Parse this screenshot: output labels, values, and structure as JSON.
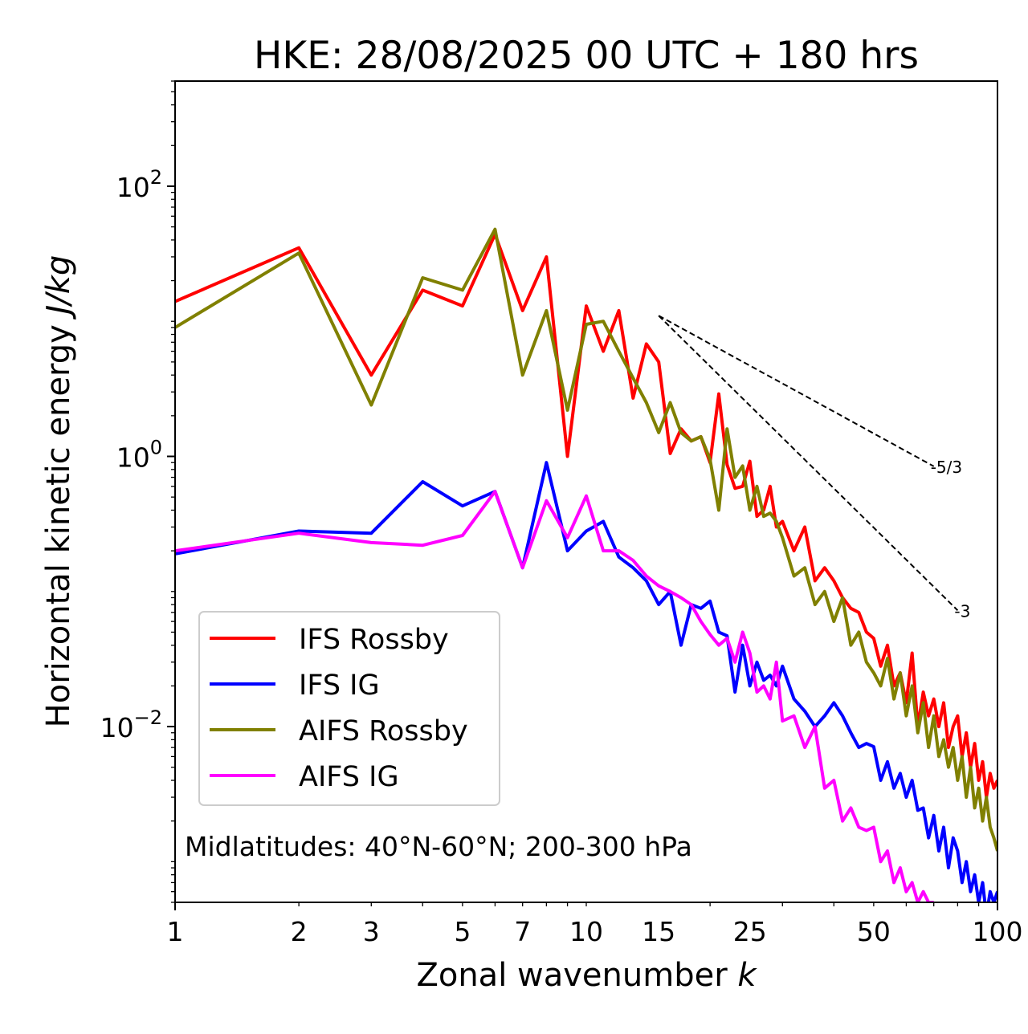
{
  "chart_data": {
    "type": "line",
    "title": "HKE: 28/08/2025 00 UTC + 180 hrs",
    "xlabel": "Zonal wavenumber",
    "xlabel_var": "k",
    "ylabel": "Horizontal kinetic energy",
    "ylabel_unit": "J/kg",
    "xscale": "log",
    "yscale": "log",
    "xlim": [
      1,
      100
    ],
    "ylim": [
      0.0005,
      600
    ],
    "x_ticks": [
      {
        "value": 1,
        "label": "1"
      },
      {
        "value": 2,
        "label": "2"
      },
      {
        "value": 3,
        "label": "3"
      },
      {
        "value": 5,
        "label": "5"
      },
      {
        "value": 7,
        "label": "7"
      },
      {
        "value": 10,
        "label": "10"
      },
      {
        "value": 15,
        "label": "15"
      },
      {
        "value": 25,
        "label": "25"
      },
      {
        "value": 50,
        "label": "50"
      },
      {
        "value": 100,
        "label": "100"
      }
    ],
    "y_ticks": [
      {
        "value": 100,
        "base": "10",
        "exp": "2"
      },
      {
        "value": 1,
        "base": "10",
        "exp": "0"
      },
      {
        "value": 0.01,
        "base": "10",
        "exp": "−2"
      }
    ],
    "annotation": "Midlatitudes: 40°N-60°N; 200-300 hPa",
    "legend_position": "lower-left",
    "reference_lines": [
      {
        "label": "-5/3",
        "slope": -1.6667,
        "x_start": 15,
        "y_start": 11,
        "x_end": 70
      },
      {
        "label": "-3",
        "slope": -3,
        "x_start": 15,
        "y_start": 11,
        "x_end": 80
      }
    ],
    "series": [
      {
        "name": "IFS Rossby",
        "color": "#ff0000",
        "x": [
          1,
          2,
          3,
          4,
          5,
          6,
          7,
          8,
          9,
          10,
          11,
          12,
          13,
          14,
          15,
          16,
          17,
          18,
          19,
          20,
          21,
          22,
          23,
          24,
          25,
          26,
          27,
          28,
          29,
          30,
          32,
          34,
          36,
          38,
          40,
          42,
          44,
          46,
          48,
          50,
          52,
          54,
          56,
          58,
          60,
          62,
          64,
          66,
          68,
          70,
          72,
          74,
          76,
          78,
          80,
          82,
          84,
          86,
          88,
          90,
          92,
          94,
          96,
          98,
          100
        ],
        "y": [
          14,
          35,
          4,
          17,
          13,
          44,
          12,
          30,
          1.0,
          13,
          6,
          12,
          2.7,
          6.8,
          5,
          1.05,
          1.6,
          1.3,
          1.4,
          0.9,
          2.9,
          0.87,
          0.58,
          0.6,
          0.92,
          0.36,
          0.4,
          0.6,
          0.3,
          0.33,
          0.2,
          0.3,
          0.12,
          0.15,
          0.12,
          0.09,
          0.075,
          0.07,
          0.05,
          0.045,
          0.028,
          0.04,
          0.02,
          0.025,
          0.015,
          0.035,
          0.01,
          0.018,
          0.012,
          0.016,
          0.01,
          0.015,
          0.007,
          0.01,
          0.012,
          0.006,
          0.009,
          0.005,
          0.0075,
          0.004,
          0.0055,
          0.003,
          0.0045,
          0.0035,
          0.004
        ]
      },
      {
        "name": "IFS IG",
        "color": "#0000ff",
        "x": [
          1,
          2,
          3,
          4,
          5,
          6,
          7,
          8,
          9,
          10,
          11,
          12,
          13,
          14,
          15,
          16,
          17,
          18,
          19,
          20,
          21,
          22,
          23,
          24,
          25,
          26,
          27,
          28,
          29,
          30,
          32,
          34,
          36,
          38,
          40,
          42,
          44,
          46,
          48,
          50,
          52,
          54,
          56,
          58,
          60,
          62,
          64,
          66,
          68,
          70,
          72,
          74,
          76,
          78,
          80,
          82,
          84,
          86,
          88,
          90,
          92,
          94,
          96,
          98,
          100
        ],
        "y": [
          0.19,
          0.28,
          0.27,
          0.65,
          0.43,
          0.55,
          0.15,
          0.9,
          0.2,
          0.28,
          0.33,
          0.18,
          0.15,
          0.12,
          0.08,
          0.1,
          0.04,
          0.08,
          0.075,
          0.085,
          0.05,
          0.047,
          0.018,
          0.04,
          0.02,
          0.03,
          0.022,
          0.024,
          0.02,
          0.028,
          0.016,
          0.013,
          0.01,
          0.012,
          0.015,
          0.012,
          0.009,
          0.007,
          0.0075,
          0.0071,
          0.004,
          0.0055,
          0.0035,
          0.0045,
          0.003,
          0.004,
          0.0024,
          0.0025,
          0.0015,
          0.0022,
          0.0012,
          0.0018,
          0.0009,
          0.0015,
          0.0012,
          0.0007,
          0.001,
          0.0006,
          0.0008,
          0.0005,
          0.0007,
          0.0004,
          0.0006,
          0.0005,
          0.0006
        ]
      },
      {
        "name": "AIFS Rossby",
        "color": "#808000",
        "x": [
          1,
          2,
          3,
          4,
          5,
          6,
          7,
          8,
          9,
          10,
          11,
          12,
          13,
          14,
          15,
          16,
          17,
          18,
          19,
          20,
          21,
          22,
          23,
          24,
          25,
          26,
          27,
          28,
          29,
          30,
          32,
          34,
          36,
          38,
          40,
          42,
          44,
          46,
          48,
          50,
          52,
          54,
          56,
          58,
          60,
          62,
          64,
          66,
          68,
          70,
          72,
          74,
          76,
          78,
          80,
          82,
          84,
          86,
          88,
          90,
          92,
          94,
          96,
          98,
          100
        ],
        "y": [
          9,
          32,
          2.4,
          21,
          17,
          48,
          4,
          12,
          2.2,
          9.5,
          10,
          6,
          3.8,
          2.5,
          1.5,
          2.5,
          1.5,
          1.3,
          1.4,
          0.95,
          0.4,
          1.6,
          0.7,
          0.85,
          0.4,
          0.6,
          0.36,
          0.38,
          0.33,
          0.25,
          0.13,
          0.15,
          0.08,
          0.1,
          0.06,
          0.09,
          0.04,
          0.05,
          0.03,
          0.025,
          0.02,
          0.032,
          0.016,
          0.025,
          0.012,
          0.02,
          0.009,
          0.015,
          0.007,
          0.012,
          0.006,
          0.008,
          0.005,
          0.007,
          0.004,
          0.006,
          0.003,
          0.005,
          0.0025,
          0.0035,
          0.002,
          0.003,
          0.0018,
          0.0015,
          0.0012
        ]
      },
      {
        "name": "AIFS IG",
        "color": "#ff00ff",
        "x": [
          1,
          2,
          3,
          4,
          5,
          6,
          7,
          8,
          9,
          10,
          11,
          12,
          13,
          14,
          15,
          16,
          17,
          18,
          19,
          20,
          21,
          22,
          23,
          24,
          25,
          26,
          27,
          28,
          29,
          30,
          32,
          34,
          36,
          38,
          40,
          42,
          44,
          46,
          48,
          50,
          52,
          54,
          56,
          58,
          60,
          62,
          64,
          66,
          68,
          70
        ],
        "y": [
          0.2,
          0.27,
          0.23,
          0.22,
          0.26,
          0.55,
          0.15,
          0.47,
          0.25,
          0.51,
          0.2,
          0.2,
          0.17,
          0.13,
          0.11,
          0.1,
          0.09,
          0.08,
          0.06,
          0.048,
          0.04,
          0.045,
          0.03,
          0.05,
          0.035,
          0.018,
          0.02,
          0.016,
          0.03,
          0.011,
          0.012,
          0.007,
          0.01,
          0.0035,
          0.004,
          0.002,
          0.0025,
          0.0018,
          0.0017,
          0.0018,
          0.001,
          0.0012,
          0.0007,
          0.0009,
          0.0006,
          0.0007,
          0.0005,
          0.0006,
          0.0005,
          0.0005
        ]
      }
    ]
  }
}
